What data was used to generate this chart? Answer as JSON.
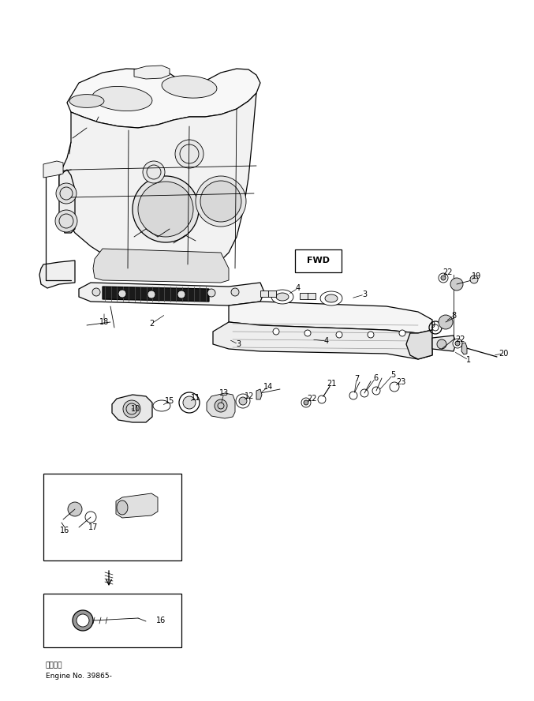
{
  "bg_color": "#ffffff",
  "line_color": "#000000",
  "fig_width": 6.77,
  "fig_height": 8.88,
  "dpi": 100,
  "footer_text1": "適用底機",
  "footer_text2": "Engine No. 39865-",
  "fwd_label": "FWD",
  "lw_thin": 0.6,
  "lw_med": 0.9,
  "lw_thick": 1.4
}
